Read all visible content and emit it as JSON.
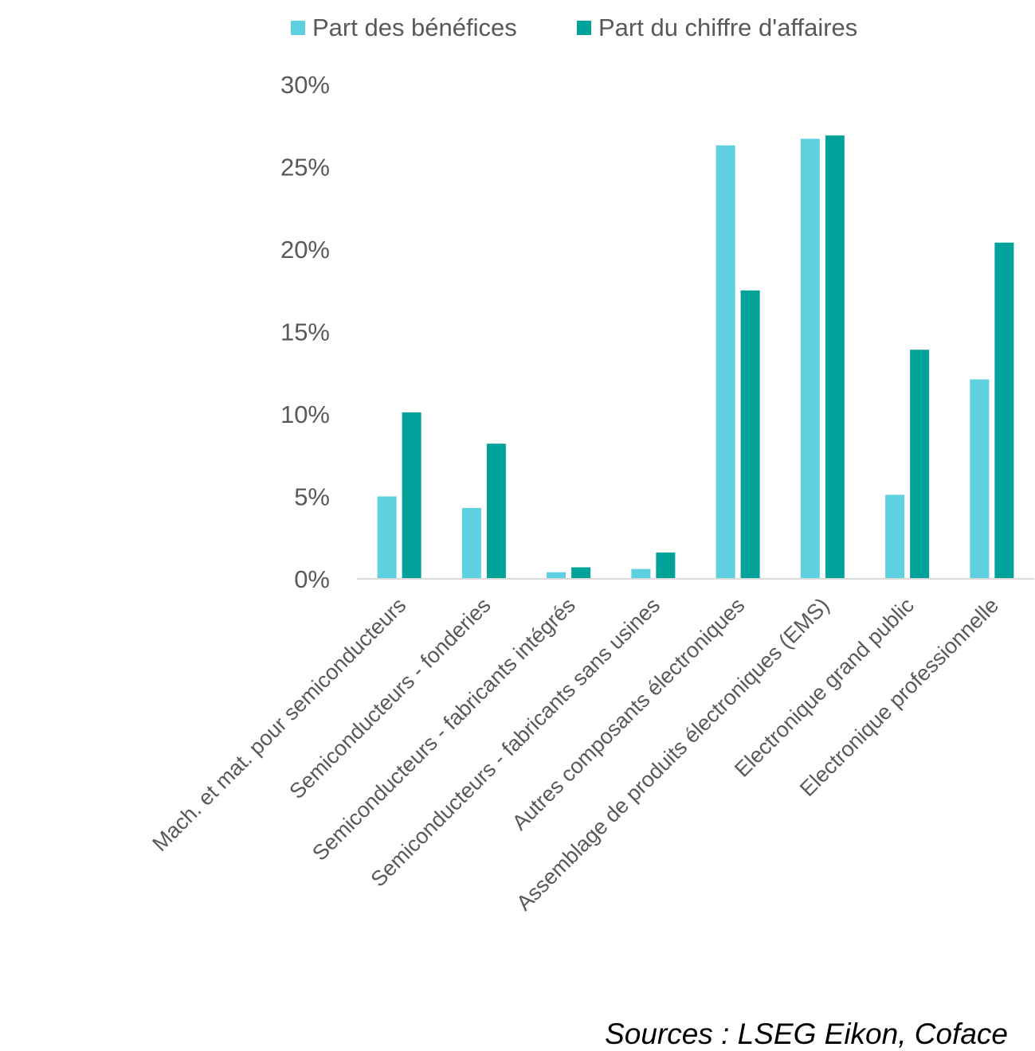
{
  "source": "Sources : LSEG Eikon, Coface",
  "chart_data": {
    "type": "bar",
    "categories": [
      "Mach. et mat. pour semiconducteurs",
      "Semiconducteurs - fonderies",
      "Semiconducteurs - fabricants intégrés",
      "Semiconducteurs - fabricants sans usines",
      "Autres composants électroniques",
      "Assemblage de produits électroniques (EMS)",
      "Electronique grand public",
      "Electronique professionnelle"
    ],
    "series": [
      {
        "name": "Part des bénéfices",
        "color": "#5FD0E0",
        "values": [
          5.0,
          4.3,
          0.4,
          0.6,
          26.3,
          26.7,
          5.1,
          12.1
        ]
      },
      {
        "name": "Part du chiffre d'affaires",
        "color": "#00A29A",
        "values": [
          10.1,
          8.2,
          0.7,
          1.6,
          17.5,
          26.9,
          13.9,
          20.4
        ]
      }
    ],
    "y_ticks": [
      "0%",
      "5%",
      "10%",
      "15%",
      "20%",
      "25%",
      "30%"
    ],
    "ylim": [
      0,
      30
    ],
    "y_format": "percent",
    "legend_position": "top",
    "grid": false
  }
}
